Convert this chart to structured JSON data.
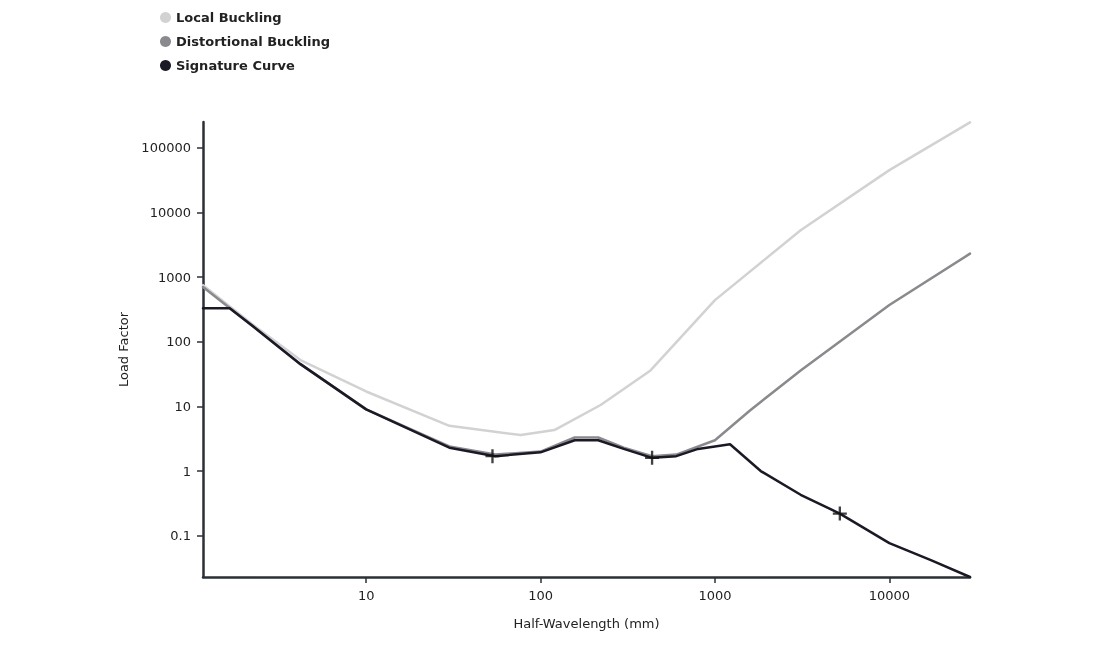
{
  "chart_data": {
    "type": "line",
    "xlabel": "Half-Wavelength (mm)",
    "ylabel": "Load Factor",
    "log": "xy",
    "grid": false,
    "legend": "top left",
    "marker": "none",
    "line_style": "solid",
    "xlim": [
      1.16,
      29000
    ],
    "xticks": [
      10,
      100,
      1000,
      10000
    ],
    "ylim": [
      0.023,
      250000
    ],
    "yticks": [
      0.1,
      1,
      10,
      100,
      1000,
      10000,
      100000
    ],
    "series": [
      {
        "name": "Local Buckling",
        "color": "#d2d2d2",
        "x": [
          1.16,
          2.15,
          4.2,
          10,
          30,
          77,
          120,
          221,
          427,
          1000,
          3100,
          10000,
          29000
        ],
        "values": [
          750,
          200,
          52,
          17,
          5,
          3.6,
          4.3,
          10.5,
          36,
          440,
          5300,
          45000,
          247000
        ]
      },
      {
        "name": "Distortional Buckling",
        "color": "#8a8a8e",
        "x": [
          1.16,
          2.15,
          4.2,
          10,
          30,
          55,
          100,
          157,
          214,
          300,
          436,
          600,
          1000,
          1600,
          3100,
          10000,
          29000
        ],
        "values": [
          700,
          190,
          45,
          9,
          2.4,
          1.8,
          2.0,
          3.3,
          3.3,
          2.3,
          1.7,
          1.8,
          3,
          8.8,
          36,
          370,
          2300
        ]
      },
      {
        "name": "Signature Curve",
        "color": "#1a1a26",
        "x": [
          1.16,
          1.65,
          2.15,
          4.2,
          10,
          30,
          55,
          100,
          157,
          214,
          300,
          436,
          600,
          800,
          1220,
          1830,
          3100,
          5200,
          10000,
          17300,
          29000
        ],
        "values": [
          330,
          330,
          190,
          45,
          9,
          2.3,
          1.7,
          1.95,
          3.0,
          3.0,
          2.2,
          1.6,
          1.7,
          2.2,
          2.6,
          1.0,
          0.43,
          0.22,
          0.077,
          0.042,
          0.023
        ]
      },
      {
        "type": "scatter",
        "marker": "cross",
        "color": "#111111",
        "x": [
          53,
          436,
          5200
        ],
        "values": [
          1.7,
          1.6,
          0.22
        ]
      }
    ]
  }
}
